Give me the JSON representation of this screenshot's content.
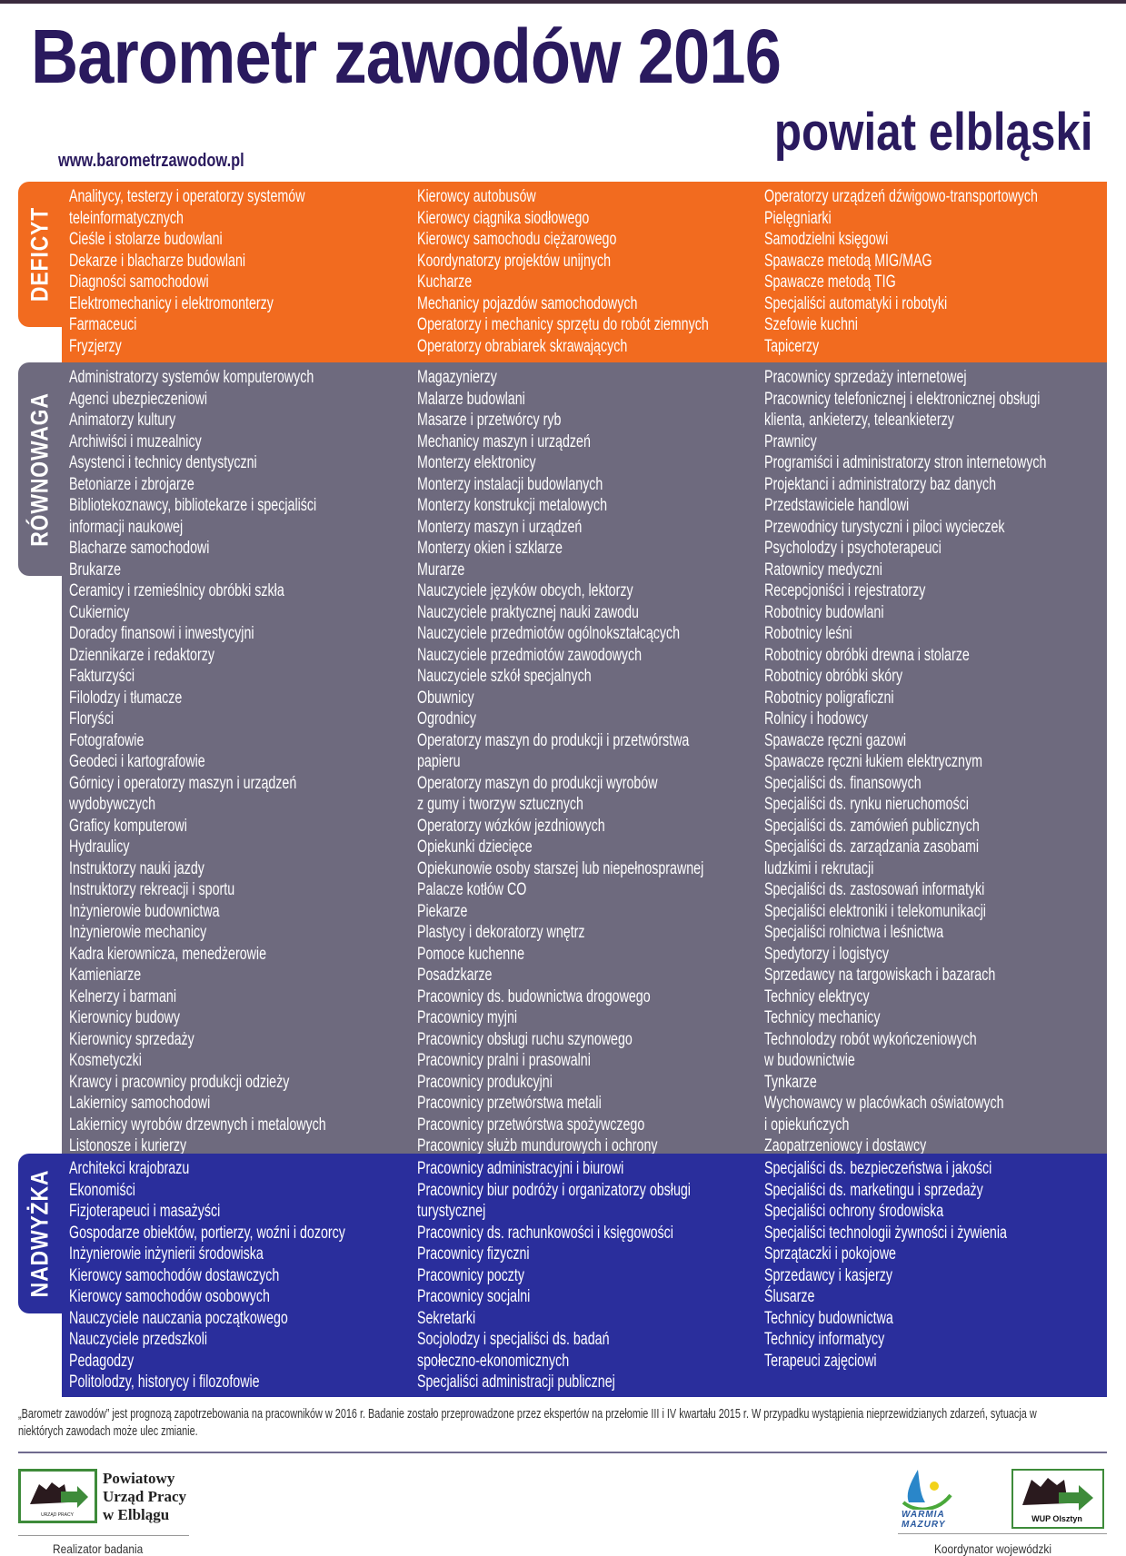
{
  "header": {
    "title": "Barometr zawodów 2016",
    "subtitle": "powiat elbląski",
    "url": "www.barometrzawodow.pl"
  },
  "colors": {
    "title": "#2a1a5e",
    "deficyt": "#f26b1f",
    "rownowaga": "#6e6a7e",
    "nadwyzka": "#2a2e9c"
  },
  "sections": {
    "deficyt": {
      "label": "DEFICYT",
      "columns": [
        [
          "Analitycy, testerzy i operatorzy systemów\nteleinformatycznych",
          "Cieśle i stolarze budowlani",
          "Dekarze i blacharze budowlani",
          "Diagności samochodowi",
          "Elektromechanicy i elektromonterzy",
          "Farmaceuci",
          "Fryzjerzy"
        ],
        [
          "Kierowcy autobusów",
          "Kierowcy ciągnika siodłowego",
          "Kierowcy samochodu ciężarowego",
          "Koordynatorzy projektów unijnych",
          "Kucharze",
          "Mechanicy pojazdów samochodowych",
          "Operatorzy i mechanicy sprzętu do robót ziemnych",
          "Operatorzy obrabiarek skrawających"
        ],
        [
          "Operatorzy urządzeń dźwigowo-transportowych",
          "Pielęgniarki",
          "Samodzielni księgowi",
          "Spawacze metodą MIG/MAG",
          "Spawacze metodą TIG",
          "Specjaliści automatyki i robotyki",
          "Szefowie kuchni",
          "Tapicerzy"
        ]
      ]
    },
    "rownowaga": {
      "label": "RÓWNOWAGA",
      "columns": [
        [
          "Administratorzy systemów komputerowych",
          "Agenci ubezpieczeniowi",
          "Animatorzy kultury",
          "Archiwiści i muzealnicy",
          "Asystenci i technicy dentystyczni",
          "Betoniarze i zbrojarze",
          "Bibliotekoznawcy, bibliotekarze i specjaliści\ninformacji naukowej",
          "Blacharze samochodowi",
          "Brukarze",
          "Ceramicy i rzemieślnicy obróbki szkła",
          "Cukiernicy",
          "Doradcy finansowi i inwestycyjni",
          "Dziennikarze i redaktorzy",
          "Fakturzyści",
          "Filolodzy i tłumacze",
          "Floryści",
          "Fotografowie",
          "Geodeci i kartografowie",
          "Górnicy i operatorzy maszyn i urządzeń\nwydobywczych",
          "Graficy komputerowi",
          "Hydraulicy",
          "Instruktorzy nauki jazdy",
          "Instruktorzy rekreacji i sportu",
          "Inżynierowie budownictwa",
          "Inżynierowie mechanicy",
          "Kadra kierownicza, menedżerowie",
          "Kamieniarze",
          "Kelnerzy i barmani",
          "Kierownicy budowy",
          "Kierownicy sprzedaży",
          "Kosmetyczki",
          "Krawcy i pracownicy produkcji odzieży",
          "Lakiernicy samochodowi",
          "Lakiernicy wyrobów drzewnych i metalowych",
          "Listonosze i kurierzy"
        ],
        [
          "Magazynierzy",
          "Malarze budowlani",
          "Masarze i przetwórcy ryb",
          "Mechanicy maszyn i urządzeń",
          "Monterzy elektronicy",
          "Monterzy instalacji budowlanych",
          "Monterzy konstrukcji metalowych",
          "Monterzy maszyn i urządzeń",
          "Monterzy okien i szklarze",
          "Murarze",
          "Nauczyciele języków obcych, lektorzy",
          "Nauczyciele praktycznej nauki zawodu",
          "Nauczyciele przedmiotów ogólnokształcących",
          "Nauczyciele przedmiotów zawodowych",
          "Nauczyciele szkół specjalnych",
          "Obuwnicy",
          "Ogrodnicy",
          "Operatorzy maszyn do produkcji i przetwórstwa\npapieru",
          "Operatorzy maszyn do produkcji wyrobów\nz gumy i tworzyw sztucznych",
          "Operatorzy wózków jezdniowych",
          "Opiekunki dziecięce",
          "Opiekunowie osoby starszej lub niepełnosprawnej",
          "Palacze kotłów CO",
          "Piekarze",
          "Plastycy i dekoratorzy wnętrz",
          "Pomoce kuchenne",
          "Posadzkarze",
          "Pracownicy ds. budownictwa drogowego",
          "Pracownicy myjni",
          "Pracownicy obsługi ruchu szynowego",
          "Pracownicy pralni i prasowalni",
          "Pracownicy produkcyjni",
          "Pracownicy przetwórstwa metali",
          "Pracownicy przetwórstwa spożywczego",
          "Pracownicy służb mundurowych i ochrony"
        ],
        [
          "Pracownicy sprzedaży internetowej",
          "Pracownicy telefonicznej i elektronicznej obsługi\nklienta, ankieterzy, teleankieterzy",
          "Prawnicy",
          "Programiści i administratorzy stron internetowych",
          "Projektanci i administratorzy baz danych",
          "Przedstawiciele handlowi",
          "Przewodnicy turystyczni i piloci wycieczek",
          "Psycholodzy i psychoterapeuci",
          "Ratownicy medyczni",
          "Recepcjoniści i rejestratorzy",
          "Robotnicy budowlani",
          "Robotnicy leśni",
          "Robotnicy obróbki drewna i stolarze",
          "Robotnicy obróbki skóry",
          "Robotnicy poligraficzni",
          "Rolnicy i hodowcy",
          "Spawacze ręczni gazowi",
          "Spawacze ręczni łukiem elektrycznym",
          "Specjaliści ds. finansowych",
          "Specjaliści ds. rynku nieruchomości",
          "Specjaliści ds. zamówień publicznych",
          "Specjaliści ds. zarządzania zasobami\nludzkimi i rekrutacji",
          "Specjaliści ds. zastosowań informatyki",
          "Specjaliści elektroniki i telekomunikacji",
          "Specjaliści rolnictwa i leśnictwa",
          "Spedytorzy i logistycy",
          "Sprzedawcy na targowiskach i bazarach",
          "Technicy elektrycy",
          "Technicy mechanicy",
          "Technolodzy robót wykończeniowych\nw budownictwie",
          "Tynkarze",
          "Wychowawcy w placówkach oświatowych\ni opiekuńczych",
          "Zaopatrzeniowcy i dostawcy"
        ]
      ]
    },
    "nadwyzka": {
      "label": "NADWYŻKA",
      "columns": [
        [
          "Architekci krajobrazu",
          "Ekonomiści",
          "Fizjoterapeuci i masażyści",
          "Gospodarze obiektów, portierzy, woźni i dozorcy",
          "Inżynierowie inżynierii środowiska",
          "Kierowcy samochodów dostawczych",
          "Kierowcy samochodów osobowych",
          "Nauczyciele nauczania początkowego",
          "Nauczyciele przedszkoli",
          "Pedagodzy",
          "Politolodzy, historycy i filozofowie"
        ],
        [
          "Pracownicy administracyjni i biurowi",
          "Pracownicy biur podróży i organizatorzy obsługi\nturystycznej",
          "Pracownicy ds. rachunkowości i księgowości",
          "Pracownicy fizyczni",
          "Pracownicy poczty",
          "Pracownicy socjalni",
          "Sekretarki",
          "Socjolodzy i specjaliści ds. badań\nspołeczno-ekonomicznych",
          "Specjaliści administracji publicznej"
        ],
        [
          "Specjaliści ds. bezpieczeństwa i jakości",
          "Specjaliści ds. marketingu i sprzedaży",
          "Specjaliści ochrony środowiska",
          "Specjaliści technologii żywności i żywienia",
          "Sprzątaczki i pokojowe",
          "Sprzedawcy i kasjerzy",
          "Ślusarze",
          "Technicy budownictwa",
          "Technicy informatycy",
          "Terapeuci zajęciowi"
        ]
      ]
    }
  },
  "footer": {
    "note": "„Barometr zawodów” jest prognozą zapotrzebowania na pracowników w 2016 r. Badanie zostało przeprowadzone przez ekspertów na przełomie III i IV kwartału 2015 r. W przypadku wystąpienia nieprzewidzianych zdarzeń, sytuacja w niektórych zawodach może ulec zmianie.",
    "left_logo": {
      "name": "Powiatowy\nUrząd Pracy\nw Elblągu",
      "logo_text": "URZĄD PRACY",
      "caption": "Realizator badania"
    },
    "right_logos": {
      "region_logo_text": "WARMIA MAZURY",
      "wup_logo_text": "WUP Olsztyn",
      "caption": "Koordynator wojewódzki"
    }
  }
}
